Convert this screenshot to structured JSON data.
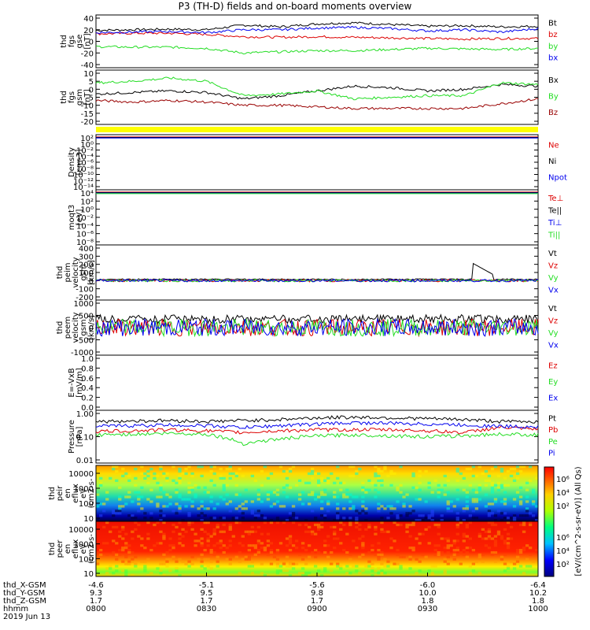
{
  "title": "P3 (TH-D) fields and on-board moments overview",
  "colors": {
    "black": "#000000",
    "red": "#dd0000",
    "dark_red": "#990000",
    "green": "#22dd22",
    "blue": "#0000ee",
    "yellow": "#ffff00"
  },
  "chart_data": [
    {
      "type": "line",
      "ylabel": [
        "thd",
        "fgs",
        "gse",
        "[nT]"
      ],
      "ylim": [
        -40,
        40
      ],
      "yticks": [
        40,
        20,
        0,
        -20,
        -40
      ],
      "legend": [
        {
          "name": "Bt",
          "color": "#000000"
        },
        {
          "name": "bz",
          "color": "#dd0000"
        },
        {
          "name": "by",
          "color": "#22dd22"
        },
        {
          "name": "bx",
          "color": "#0000ee"
        }
      ],
      "x": [
        0,
        10,
        20,
        30,
        40,
        50,
        60,
        70,
        80,
        90,
        100,
        110,
        120
      ],
      "series": [
        {
          "name": "Bt",
          "color": "#000000",
          "values": [
            19,
            20,
            21,
            20,
            28,
            25,
            30,
            32,
            29,
            26,
            27,
            25,
            26
          ]
        },
        {
          "name": "bz",
          "color": "#dd0000",
          "values": [
            13,
            14,
            14,
            12,
            8,
            7,
            8,
            7,
            6,
            5,
            4,
            5,
            5
          ]
        },
        {
          "name": "by",
          "color": "#22dd22",
          "values": [
            -9,
            -10,
            -10,
            -12,
            -20,
            -18,
            -16,
            -16,
            -14,
            -12,
            -13,
            -14,
            -12
          ]
        },
        {
          "name": "bx",
          "color": "#0000ee",
          "values": [
            15,
            16,
            17,
            15,
            20,
            20,
            23,
            24,
            22,
            18,
            20,
            16,
            22
          ]
        }
      ]
    },
    {
      "type": "line",
      "ylabel": [
        "thd",
        "fgs",
        "gsm",
        "[nT]"
      ],
      "ylim": [
        -20,
        10
      ],
      "yticks": [
        10,
        5,
        0,
        -5,
        -10,
        -15,
        -20
      ],
      "legend": [
        {
          "name": "Bx",
          "color": "#000000"
        },
        {
          "name": "By",
          "color": "#22dd22"
        },
        {
          "name": "Bz",
          "color": "#990000"
        }
      ],
      "x": [
        0,
        10,
        20,
        30,
        40,
        50,
        60,
        70,
        80,
        90,
        100,
        110,
        120
      ],
      "series": [
        {
          "name": "Bx",
          "color": "#000000",
          "values": [
            -3,
            -2,
            -1,
            -2,
            -6,
            -4,
            -1,
            2,
            1,
            -1,
            0,
            3,
            2
          ]
        },
        {
          "name": "By",
          "color": "#22dd22",
          "values": [
            4,
            5,
            7,
            5,
            -4,
            -3,
            -1,
            -6,
            -5,
            -4,
            -4,
            4,
            3
          ]
        },
        {
          "name": "Bz",
          "color": "#990000",
          "values": [
            -7,
            -8,
            -7,
            -8,
            -10,
            -10,
            -11,
            -12,
            -12,
            -12,
            -12,
            -9,
            -6
          ]
        }
      ]
    },
    {
      "type": "line",
      "ylabel": [
        "Density",
        "[cm-3]"
      ],
      "yticks": [
        "10²",
        "10⁰",
        "10⁻²",
        "10⁻⁴",
        "10⁻⁶",
        "10⁻⁸",
        "10⁻¹⁰",
        "10⁻¹²",
        "10⁻¹⁴"
      ],
      "legend": [
        {
          "name": "Ne",
          "color": "#dd0000"
        },
        {
          "name": "Ni",
          "color": "#000000"
        },
        {
          "name": "Npot",
          "color": "#0000ee"
        }
      ]
    },
    {
      "type": "line",
      "ylabel": [
        "moqt3",
        "[eV]"
      ],
      "yticks": [
        "10⁴",
        "10²",
        "10⁰",
        "10⁻²",
        "10⁻⁴",
        "10⁻⁶",
        "10⁻⁸"
      ],
      "legend": [
        {
          "name": "Te⊥",
          "color": "#dd0000"
        },
        {
          "name": "Te||",
          "color": "#000000"
        },
        {
          "name": "Ti⊥",
          "color": "#0000ee"
        },
        {
          "name": "Ti||",
          "color": "#22dd22"
        }
      ]
    },
    {
      "type": "line",
      "ylabel": [
        "thd",
        "peim",
        "velocity",
        "gsm",
        "[km/s]"
      ],
      "ylim": [
        -200,
        400
      ],
      "yticks": [
        400,
        300,
        200,
        100,
        0,
        -100,
        -200
      ],
      "legend": [
        {
          "name": "Vt",
          "color": "#000000"
        },
        {
          "name": "Vz",
          "color": "#dd0000"
        },
        {
          "name": "Vy",
          "color": "#22dd22"
        },
        {
          "name": "Vx",
          "color": "#0000ee"
        }
      ]
    },
    {
      "type": "line",
      "ylabel": [
        "thd",
        "peem",
        "velocity",
        "gsm",
        "[km/s]"
      ],
      "ylim": [
        -1000,
        1000
      ],
      "yticks": [
        1000,
        500,
        0,
        -500,
        -1000
      ],
      "legend": [
        {
          "name": "Vt",
          "color": "#000000"
        },
        {
          "name": "Vz",
          "color": "#dd0000"
        },
        {
          "name": "Vy",
          "color": "#22dd22"
        },
        {
          "name": "Vx",
          "color": "#0000ee"
        }
      ]
    },
    {
      "type": "line",
      "ylabel": [
        "E=-VxB",
        "[mV/m]"
      ],
      "ylim": [
        0,
        1
      ],
      "yticks": [
        1.0,
        0.8,
        0.6,
        0.4,
        0.2,
        0.0
      ],
      "legend": [
        {
          "name": "Ez",
          "color": "#dd0000"
        },
        {
          "name": "Ey",
          "color": "#22dd22"
        },
        {
          "name": "Ex",
          "color": "#0000ee"
        }
      ]
    },
    {
      "type": "line",
      "ylabel": [
        "Pressure",
        "[nPa]"
      ],
      "yscale": "log",
      "ylim": [
        0.01,
        1.0
      ],
      "yticks": [
        "1.00",
        "0.10",
        "0.01"
      ],
      "legend": [
        {
          "name": "Pt",
          "color": "#000000"
        },
        {
          "name": "Pb",
          "color": "#dd0000"
        },
        {
          "name": "Pe",
          "color": "#22dd22"
        },
        {
          "name": "Pi",
          "color": "#0000ee"
        }
      ],
      "x": [
        0,
        10,
        20,
        30,
        40,
        50,
        60,
        70,
        80,
        90,
        100,
        110,
        120
      ],
      "series": [
        {
          "name": "Pt",
          "color": "#000000",
          "values": [
            0.45,
            0.48,
            0.5,
            0.45,
            0.5,
            0.55,
            0.65,
            0.7,
            0.65,
            0.6,
            0.55,
            0.45,
            0.45
          ]
        },
        {
          "name": "Pb",
          "color": "#dd0000",
          "values": [
            0.17,
            0.18,
            0.2,
            0.18,
            0.15,
            0.18,
            0.2,
            0.2,
            0.2,
            0.18,
            0.15,
            0.25,
            0.2
          ]
        },
        {
          "name": "Pe",
          "color": "#22dd22",
          "values": [
            0.12,
            0.13,
            0.14,
            0.13,
            0.05,
            0.08,
            0.11,
            0.12,
            0.11,
            0.1,
            0.11,
            0.13,
            0.12
          ]
        },
        {
          "name": "Pi",
          "color": "#0000ee",
          "values": [
            0.28,
            0.3,
            0.32,
            0.3,
            0.25,
            0.3,
            0.35,
            0.4,
            0.38,
            0.35,
            0.32,
            0.28,
            0.27
          ]
        }
      ]
    },
    {
      "type": "heatmap",
      "ylabel": [
        "thd",
        "peir",
        "en",
        "eflux",
        "eV",
        "(cm2-s-",
        "sr-eV)"
      ],
      "yscale": "log",
      "ylim": [
        10,
        10000
      ],
      "yticks": [
        "10000",
        "1000",
        "100",
        "10"
      ]
    },
    {
      "type": "heatmap",
      "ylabel": [
        "thd",
        "peer",
        "en",
        "eflux",
        "eV",
        "(cm2-s-",
        "sr-eV)"
      ],
      "yscale": "log",
      "ylim": [
        10,
        10000
      ],
      "yticks": [
        "10000",
        "1000",
        "100",
        "10"
      ]
    }
  ],
  "colorbar": {
    "label": "[eV/(cm^2-s-sr-eV)] (All Qs)",
    "ticks_top": [
      "10⁶",
      "10⁴",
      "10²"
    ],
    "ticks_bottom": [
      "10⁶",
      "10⁴",
      "10²"
    ]
  },
  "x_axis": {
    "row_labels": [
      "thd_X-GSM",
      "thd_Y-GSM",
      "thd_Z-GSM",
      "hhmm",
      "2019 Jun 13"
    ],
    "ticks": [
      {
        "x": "-4.6",
        "y": "9.3",
        "z": "1.7",
        "time": "0800"
      },
      {
        "x": "-5.1",
        "y": "9.5",
        "z": "1.7",
        "time": "0830"
      },
      {
        "x": "-5.6",
        "y": "9.8",
        "z": "1.7",
        "time": "0900"
      },
      {
        "x": "-6.0",
        "y": "10.0",
        "z": "1.8",
        "time": "0930"
      },
      {
        "x": "-6.4",
        "y": "10.2",
        "z": "1.8",
        "time": "1000"
      }
    ]
  }
}
